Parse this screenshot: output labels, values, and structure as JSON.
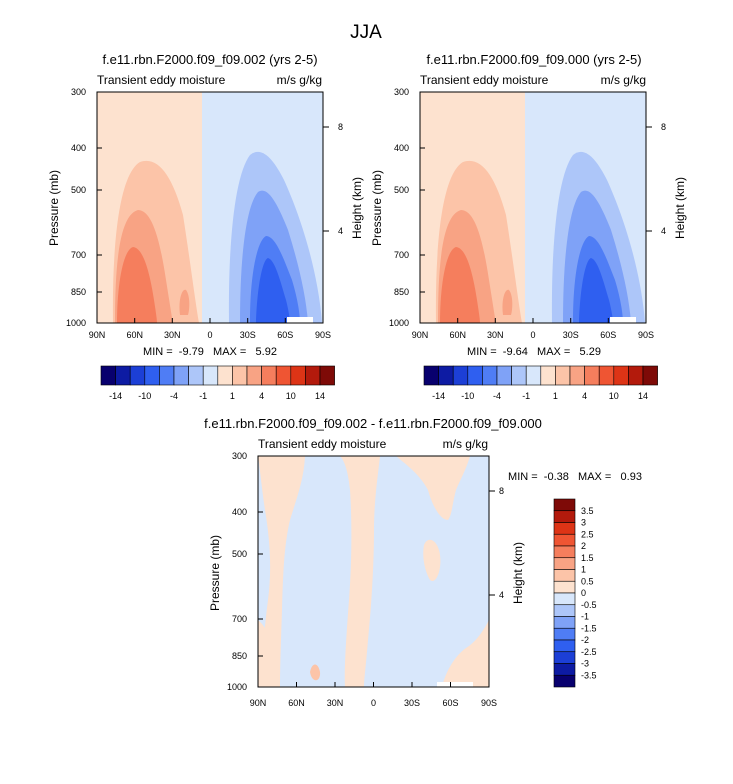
{
  "figure": {
    "title": "JJA"
  },
  "panels": [
    {
      "title": "f.e11.rbn.F2000.f09_f09.002 (yrs 2-5)",
      "left_label": "Transient eddy moisture",
      "right_label": "m/s g/kg",
      "min_max_text": "MIN =  -9.79   MAX =   5.92"
    },
    {
      "title": "f.e11.rbn.F2000.f09_f09.000 (yrs 2-5)",
      "left_label": "Transient eddy moisture",
      "right_label": "m/s g/kg",
      "min_max_text": "MIN =  -9.64   MAX =   5.29"
    },
    {
      "title": "f.e11.rbn.F2000.f09_f09.002 - f.e11.rbn.F2000.f09_f09.000",
      "left_label": "Transient eddy moisture",
      "right_label": "m/s g/kg",
      "min_max_text": "MIN =  -0.38   MAX =   0.93"
    }
  ],
  "chart_data": [
    {
      "type": "heatmap",
      "title": "f.e11.rbn.F2000.f09_f09.002 (yrs 2-5)",
      "xlabel": "",
      "ylabel": "Pressure (mb)",
      "y2label": "Height (km)",
      "x_ticks": [
        "90N",
        "60N",
        "30N",
        "0",
        "30S",
        "60S",
        "90S"
      ],
      "x_values": [
        90,
        60,
        30,
        0,
        -30,
        -60,
        -90
      ],
      "y_ticks": [
        300,
        400,
        500,
        700,
        850,
        1000
      ],
      "y2_ticks": [
        8,
        4
      ],
      "y_scale": "log",
      "ylim": [
        1000,
        300
      ],
      "min": -9.79,
      "max": 5.92
    },
    {
      "type": "heatmap",
      "title": "f.e11.rbn.F2000.f09_f09.000 (yrs 2-5)",
      "xlabel": "",
      "ylabel": "Pressure (mb)",
      "y2label": "Height (km)",
      "x_ticks": [
        "90N",
        "60N",
        "30N",
        "0",
        "30S",
        "60S",
        "90S"
      ],
      "x_values": [
        90,
        60,
        30,
        0,
        -30,
        -60,
        -90
      ],
      "y_ticks": [
        300,
        400,
        500,
        700,
        850,
        1000
      ],
      "y2_ticks": [
        8,
        4
      ],
      "y_scale": "log",
      "ylim": [
        1000,
        300
      ],
      "min": -9.64,
      "max": 5.29
    },
    {
      "type": "heatmap",
      "title": "f.e11.rbn.F2000.f09_f09.002 - f.e11.rbn.F2000.f09_f09.000",
      "xlabel": "",
      "ylabel": "Pressure (mb)",
      "y2label": "Height (km)",
      "x_ticks": [
        "90N",
        "60N",
        "30N",
        "0",
        "30S",
        "60S",
        "90S"
      ],
      "x_values": [
        90,
        60,
        30,
        0,
        -30,
        -60,
        -90
      ],
      "y_ticks": [
        300,
        400,
        500,
        700,
        850,
        1000
      ],
      "y2_ticks": [
        8,
        4
      ],
      "y_scale": "log",
      "ylim": [
        1000,
        300
      ],
      "min": -0.38,
      "max": 0.93
    }
  ],
  "colorbar_top": {
    "labels": [
      "-14",
      "-10",
      "-4",
      "-1",
      "1",
      "4",
      "10",
      "14"
    ],
    "colors": [
      "#08006e",
      "#0d1ba3",
      "#1c3fd6",
      "#2f5ff0",
      "#4f7df5",
      "#7fa2f7",
      "#adc6f9",
      "#d8e7fb",
      "#fde2cf",
      "#fcc4a8",
      "#f8a384",
      "#f57e5d",
      "#ef5533",
      "#dd3416",
      "#b31a0c",
      "#7e0a07"
    ]
  },
  "colorbar_bottom": {
    "labels": [
      "3.5",
      "3",
      "2.5",
      "2",
      "1.5",
      "1",
      "0.5",
      "0",
      "-0.5",
      "-1",
      "-1.5",
      "-2",
      "-2.5",
      "-3",
      "-3.5"
    ],
    "colors": [
      "#7e0a07",
      "#b31a0c",
      "#dd3416",
      "#ef5533",
      "#f57e5d",
      "#f8a384",
      "#fcc4a8",
      "#fde2cf",
      "#d8e7fb",
      "#adc6f9",
      "#7fa2f7",
      "#4f7df5",
      "#2f5ff0",
      "#1c3fd6",
      "#0d1ba3",
      "#08006e"
    ]
  }
}
